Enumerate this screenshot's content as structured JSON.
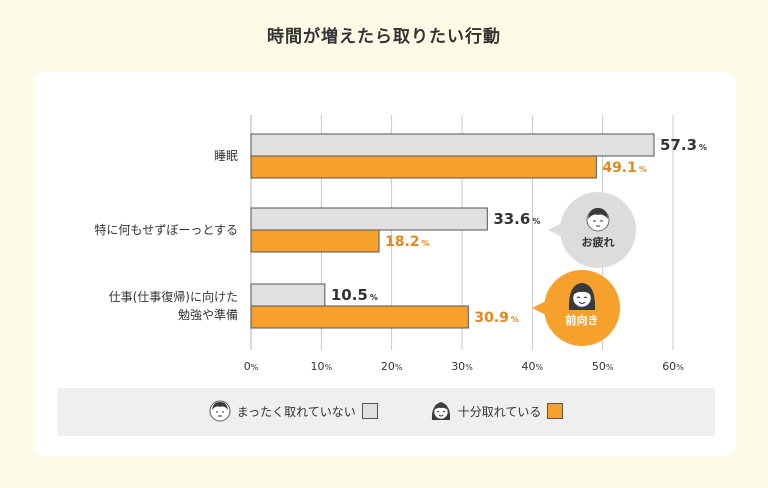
{
  "chart_data": {
    "type": "bar",
    "orientation": "horizontal",
    "title": "時間が増えたら取りたい行動",
    "categories": [
      {
        "lines": [
          "睡眠"
        ]
      },
      {
        "lines": [
          "特に何もせずぼーっとする"
        ]
      },
      {
        "lines": [
          "仕事(仕事復帰)に向けた",
          "勉強や準備"
        ]
      }
    ],
    "series": [
      {
        "name": "まったく取れていない",
        "color": "#e0e0e0",
        "values": [
          57.3,
          33.6,
          10.5
        ],
        "label_color": "#333333"
      },
      {
        "name": "十分取れている",
        "color": "#f6a12b",
        "values": [
          49.1,
          18.2,
          30.9
        ],
        "label_color": "#e8861a"
      }
    ],
    "unit": "%",
    "xlim": [
      0,
      60
    ],
    "ticks": [
      0,
      10,
      20,
      30,
      40,
      50,
      60
    ],
    "grid": true,
    "legend_position": "bottom",
    "callouts": [
      {
        "text": "お疲れ",
        "series": 0,
        "bg": "#dcdcdc",
        "text_color": "#333333"
      },
      {
        "text": "前向き",
        "series": 1,
        "bg": "#f6a12b",
        "text_color": "#ffffff"
      }
    ]
  }
}
